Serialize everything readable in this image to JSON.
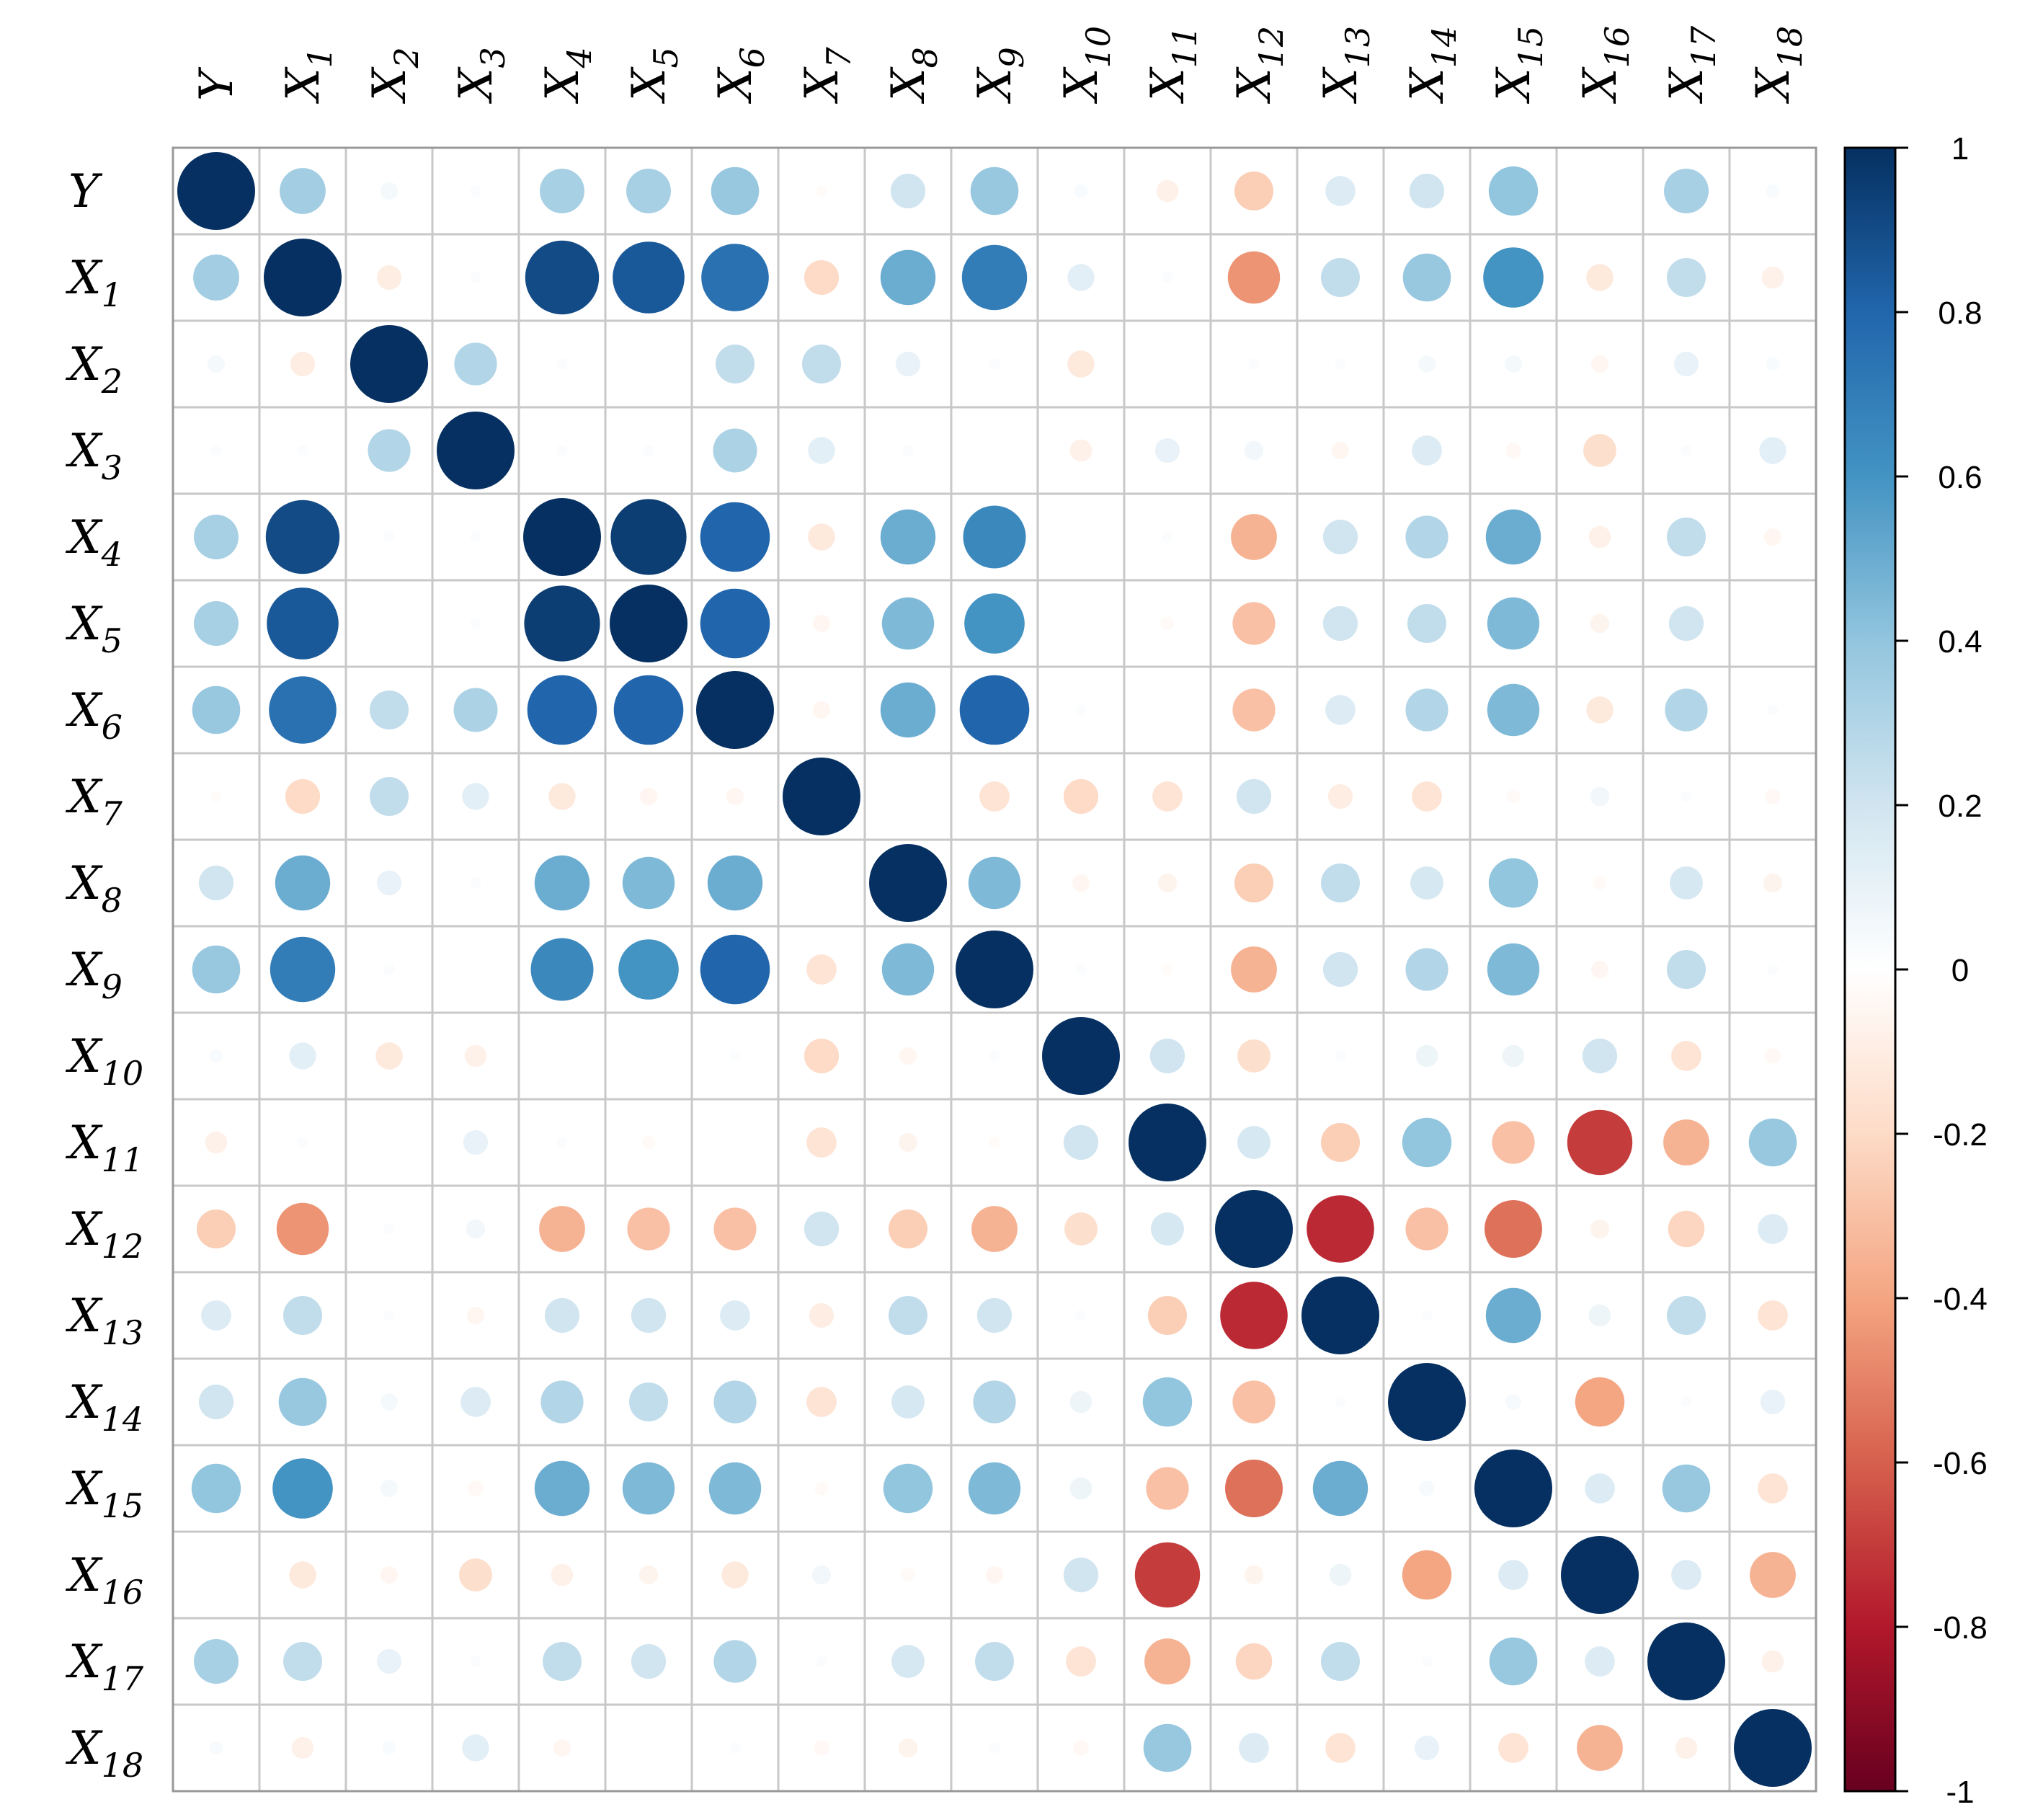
{
  "chart_data": {
    "type": "heatmap",
    "style": "circle-correlation-matrix",
    "title": "",
    "variables": [
      {
        "base": "Y",
        "sub": ""
      },
      {
        "base": "X",
        "sub": "1"
      },
      {
        "base": "X",
        "sub": "2"
      },
      {
        "base": "X",
        "sub": "3"
      },
      {
        "base": "X",
        "sub": "4"
      },
      {
        "base": "X",
        "sub": "5"
      },
      {
        "base": "X",
        "sub": "6"
      },
      {
        "base": "X",
        "sub": "7"
      },
      {
        "base": "X",
        "sub": "8"
      },
      {
        "base": "X",
        "sub": "9"
      },
      {
        "base": "X",
        "sub": "10"
      },
      {
        "base": "X",
        "sub": "11"
      },
      {
        "base": "X",
        "sub": "12"
      },
      {
        "base": "X",
        "sub": "13"
      },
      {
        "base": "X",
        "sub": "14"
      },
      {
        "base": "X",
        "sub": "15"
      },
      {
        "base": "X",
        "sub": "16"
      },
      {
        "base": "X",
        "sub": "17"
      },
      {
        "base": "X",
        "sub": "18"
      }
    ],
    "matrix": [
      [
        1.0,
        0.35,
        0.05,
        0.02,
        0.33,
        0.33,
        0.38,
        -0.02,
        0.2,
        0.38,
        0.03,
        -0.08,
        -0.25,
        0.15,
        0.2,
        0.4,
        0.0,
        0.33,
        0.03
      ],
      [
        0.35,
        1.0,
        -0.1,
        0.02,
        0.9,
        0.85,
        0.75,
        -0.2,
        0.5,
        0.7,
        0.12,
        0.02,
        -0.45,
        0.25,
        0.38,
        0.6,
        -0.12,
        0.25,
        -0.08
      ],
      [
        0.05,
        -0.1,
        1.0,
        0.3,
        0.02,
        0.0,
        0.25,
        0.25,
        0.1,
        0.02,
        -0.12,
        0.0,
        0.02,
        0.02,
        0.05,
        0.05,
        -0.05,
        0.1,
        0.03
      ],
      [
        0.02,
        0.02,
        0.3,
        1.0,
        0.02,
        0.02,
        0.32,
        0.12,
        0.02,
        0.0,
        -0.08,
        0.1,
        0.06,
        -0.05,
        0.15,
        -0.04,
        -0.18,
        0.02,
        0.12
      ],
      [
        0.33,
        0.9,
        0.02,
        0.02,
        1.0,
        0.95,
        0.8,
        -0.12,
        0.5,
        0.65,
        0.0,
        0.02,
        -0.35,
        0.2,
        0.3,
        0.5,
        -0.08,
        0.25,
        -0.05
      ],
      [
        0.33,
        0.85,
        0.0,
        0.02,
        0.95,
        1.0,
        0.8,
        -0.05,
        0.45,
        0.6,
        0.0,
        -0.03,
        -0.3,
        0.2,
        0.25,
        0.45,
        -0.06,
        0.2,
        0.0
      ],
      [
        0.38,
        0.75,
        0.25,
        0.32,
        0.8,
        0.8,
        1.0,
        -0.05,
        0.5,
        0.8,
        0.02,
        0.0,
        -0.3,
        0.15,
        0.3,
        0.45,
        -0.12,
        0.3,
        0.02
      ],
      [
        -0.02,
        -0.2,
        0.25,
        0.12,
        -0.12,
        -0.05,
        -0.05,
        1.0,
        0.0,
        -0.15,
        -0.2,
        -0.15,
        0.2,
        -0.1,
        -0.15,
        -0.03,
        0.06,
        0.02,
        -0.04
      ],
      [
        0.2,
        0.5,
        0.1,
        0.02,
        0.5,
        0.45,
        0.5,
        0.0,
        1.0,
        0.45,
        -0.05,
        -0.06,
        -0.25,
        0.25,
        0.18,
        0.4,
        -0.03,
        0.18,
        -0.06
      ],
      [
        0.38,
        0.7,
        0.02,
        0.0,
        0.65,
        0.6,
        0.8,
        -0.15,
        0.45,
        1.0,
        0.02,
        -0.02,
        -0.35,
        0.2,
        0.3,
        0.45,
        -0.05,
        0.25,
        0.02
      ],
      [
        0.03,
        0.12,
        -0.12,
        -0.08,
        0.0,
        0.0,
        0.02,
        -0.2,
        -0.05,
        0.02,
        1.0,
        0.2,
        -0.18,
        0.02,
        0.08,
        0.08,
        0.2,
        -0.15,
        -0.04
      ],
      [
        -0.08,
        0.02,
        0.0,
        0.1,
        0.02,
        -0.03,
        0.0,
        -0.15,
        -0.06,
        -0.02,
        0.2,
        1.0,
        0.18,
        -0.25,
        0.4,
        -0.3,
        -0.7,
        -0.35,
        0.38
      ],
      [
        -0.25,
        -0.45,
        0.02,
        0.06,
        -0.35,
        -0.3,
        -0.3,
        0.2,
        -0.25,
        -0.35,
        -0.18,
        0.18,
        1.0,
        -0.75,
        -0.3,
        -0.55,
        -0.06,
        -0.22,
        0.15
      ],
      [
        0.15,
        0.25,
        0.02,
        -0.05,
        0.2,
        0.2,
        0.15,
        -0.1,
        0.25,
        0.2,
        0.02,
        -0.25,
        -0.75,
        1.0,
        0.02,
        0.5,
        0.08,
        0.25,
        -0.15
      ],
      [
        0.2,
        0.38,
        0.05,
        0.15,
        0.3,
        0.25,
        0.3,
        -0.15,
        0.18,
        0.3,
        0.08,
        0.4,
        -0.3,
        0.02,
        1.0,
        0.04,
        -0.4,
        0.02,
        0.1
      ],
      [
        0.4,
        0.6,
        0.05,
        -0.04,
        0.5,
        0.45,
        0.45,
        -0.03,
        0.4,
        0.45,
        0.08,
        -0.3,
        -0.55,
        0.5,
        0.04,
        1.0,
        0.15,
        0.38,
        -0.15
      ],
      [
        0.0,
        -0.12,
        -0.05,
        -0.18,
        -0.08,
        -0.06,
        -0.12,
        0.06,
        -0.03,
        -0.05,
        0.2,
        -0.7,
        -0.06,
        0.08,
        -0.4,
        0.15,
        1.0,
        0.15,
        -0.35
      ],
      [
        0.33,
        0.25,
        0.1,
        0.02,
        0.25,
        0.2,
        0.3,
        0.02,
        0.18,
        0.25,
        -0.15,
        -0.35,
        -0.22,
        0.25,
        0.02,
        0.38,
        0.15,
        1.0,
        -0.08
      ],
      [
        0.03,
        -0.08,
        0.03,
        0.12,
        -0.05,
        0.0,
        0.02,
        -0.04,
        -0.06,
        0.02,
        -0.04,
        0.38,
        0.15,
        -0.15,
        0.1,
        -0.15,
        -0.35,
        -0.08,
        1.0
      ]
    ],
    "colorbar": {
      "range": [
        -1,
        1
      ],
      "ticks": [
        "1",
        "0.8",
        "0.6",
        "0.4",
        "0.2",
        "0",
        "-0.2",
        "-0.4",
        "-0.6",
        "-0.8",
        "-1"
      ],
      "tick_values": [
        1,
        0.8,
        0.6,
        0.4,
        0.2,
        0,
        -0.2,
        -0.4,
        -0.6,
        -0.8,
        -1
      ],
      "palette": [
        "#67001F",
        "#B2182B",
        "#D6604D",
        "#F4A582",
        "#FDDBC7",
        "#FFFFFF",
        "#D1E5F0",
        "#92C5DE",
        "#4393C3",
        "#2166AC",
        "#053061"
      ]
    },
    "grid_color": "#c8c8c8",
    "border_color": "#999999"
  }
}
